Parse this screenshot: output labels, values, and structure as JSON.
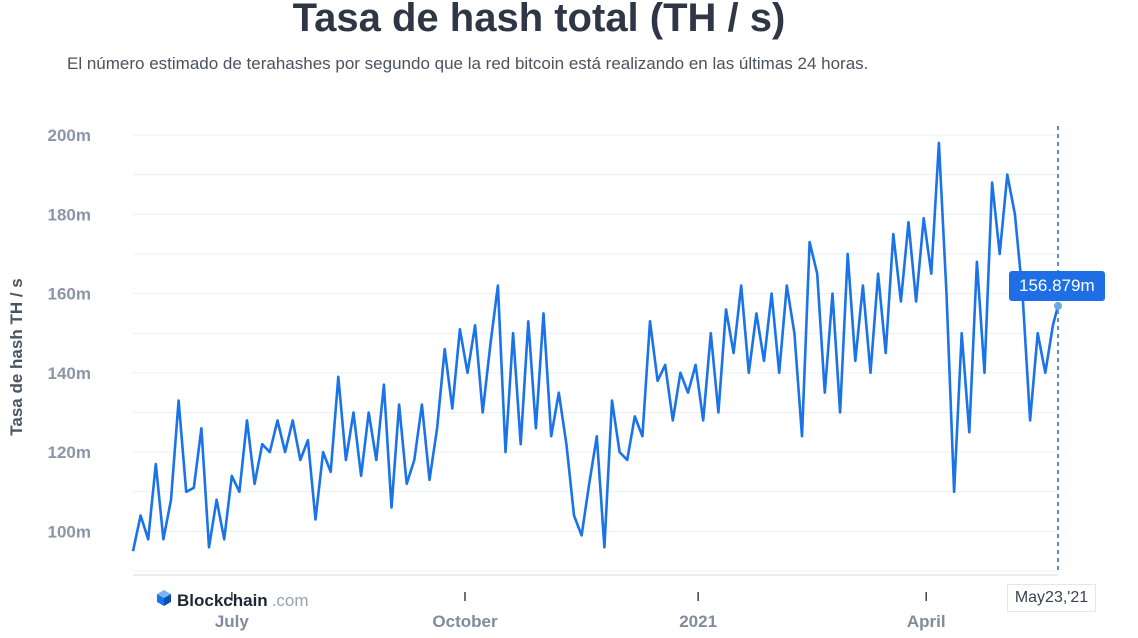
{
  "title": "Tasa de hash total (TH / s)",
  "subtitle": "El número estimado de terahashes por segundo que la red bitcoin está realizando en las últimas 24 horas.",
  "tooltip_value": "156.879m",
  "cursor_date": "May23,'21",
  "brand": {
    "name": "Blockchain",
    "tld": ".com",
    "logo": "blockchain-cube-icon"
  },
  "colors": {
    "line": "#1a73e8",
    "tooltip": "#1e6fe6",
    "grid": "#eceff3"
  },
  "chart_data": {
    "type": "line",
    "title": "Tasa de hash total (TH / s)",
    "ylabel": "Tasa de hash TH / s",
    "xlabel": "",
    "ylim": [
      89,
      200
    ],
    "yticks": [
      100,
      120,
      140,
      160,
      180,
      200
    ],
    "ytick_labels": [
      "100m",
      "120m",
      "140m",
      "160m",
      "180m",
      "200m"
    ],
    "y_unit": "million TH/s",
    "xlim": [
      "2020-05-23",
      "2021-05-23"
    ],
    "xticks": [
      "2020-07-01",
      "2020-10-01",
      "2021-01-01",
      "2021-04-01"
    ],
    "xtick_labels": [
      "July",
      "October",
      "2021",
      "April"
    ],
    "grid": true,
    "hover": {
      "x": "2021-05-23",
      "y": 156.879
    },
    "series": [
      {
        "values": [
          [
            "2020-05-23",
            95
          ],
          [
            "2020-05-26",
            104
          ],
          [
            "2020-05-29",
            98
          ],
          [
            "2020-06-01",
            117
          ],
          [
            "2020-06-04",
            98
          ],
          [
            "2020-06-07",
            108
          ],
          [
            "2020-06-10",
            133
          ],
          [
            "2020-06-13",
            110
          ],
          [
            "2020-06-16",
            111
          ],
          [
            "2020-06-19",
            126
          ],
          [
            "2020-06-22",
            96
          ],
          [
            "2020-06-25",
            108
          ],
          [
            "2020-06-28",
            98
          ],
          [
            "2020-07-01",
            114
          ],
          [
            "2020-07-04",
            110
          ],
          [
            "2020-07-07",
            128
          ],
          [
            "2020-07-10",
            112
          ],
          [
            "2020-07-13",
            122
          ],
          [
            "2020-07-16",
            120
          ],
          [
            "2020-07-19",
            128
          ],
          [
            "2020-07-22",
            120
          ],
          [
            "2020-07-25",
            128
          ],
          [
            "2020-07-28",
            118
          ],
          [
            "2020-07-31",
            123
          ],
          [
            "2020-08-03",
            103
          ],
          [
            "2020-08-06",
            120
          ],
          [
            "2020-08-09",
            115
          ],
          [
            "2020-08-12",
            139
          ],
          [
            "2020-08-15",
            118
          ],
          [
            "2020-08-18",
            130
          ],
          [
            "2020-08-21",
            114
          ],
          [
            "2020-08-24",
            130
          ],
          [
            "2020-08-27",
            118
          ],
          [
            "2020-08-30",
            137
          ],
          [
            "2020-09-02",
            106
          ],
          [
            "2020-09-05",
            132
          ],
          [
            "2020-09-08",
            112
          ],
          [
            "2020-09-11",
            118
          ],
          [
            "2020-09-14",
            132
          ],
          [
            "2020-09-17",
            113
          ],
          [
            "2020-09-20",
            126
          ],
          [
            "2020-09-23",
            146
          ],
          [
            "2020-09-26",
            131
          ],
          [
            "2020-09-29",
            151
          ],
          [
            "2020-10-02",
            140
          ],
          [
            "2020-10-05",
            152
          ],
          [
            "2020-10-08",
            130
          ],
          [
            "2020-10-11",
            147
          ],
          [
            "2020-10-14",
            162
          ],
          [
            "2020-10-17",
            120
          ],
          [
            "2020-10-20",
            150
          ],
          [
            "2020-10-23",
            122
          ],
          [
            "2020-10-26",
            153
          ],
          [
            "2020-10-29",
            126
          ],
          [
            "2020-11-01",
            155
          ],
          [
            "2020-11-04",
            124
          ],
          [
            "2020-11-07",
            135
          ],
          [
            "2020-11-10",
            122
          ],
          [
            "2020-11-13",
            104
          ],
          [
            "2020-11-16",
            99
          ],
          [
            "2020-11-19",
            112
          ],
          [
            "2020-11-22",
            124
          ],
          [
            "2020-11-25",
            96
          ],
          [
            "2020-11-28",
            133
          ],
          [
            "2020-12-01",
            120
          ],
          [
            "2020-12-04",
            118
          ],
          [
            "2020-12-07",
            129
          ],
          [
            "2020-12-10",
            124
          ],
          [
            "2020-12-13",
            153
          ],
          [
            "2020-12-16",
            138
          ],
          [
            "2020-12-19",
            142
          ],
          [
            "2020-12-22",
            128
          ],
          [
            "2020-12-25",
            140
          ],
          [
            "2020-12-28",
            135
          ],
          [
            "2020-12-31",
            142
          ],
          [
            "2021-01-03",
            128
          ],
          [
            "2021-01-06",
            150
          ],
          [
            "2021-01-09",
            130
          ],
          [
            "2021-01-12",
            156
          ],
          [
            "2021-01-15",
            145
          ],
          [
            "2021-01-18",
            162
          ],
          [
            "2021-01-21",
            140
          ],
          [
            "2021-01-24",
            155
          ],
          [
            "2021-01-27",
            143
          ],
          [
            "2021-01-30",
            160
          ],
          [
            "2021-02-02",
            140
          ],
          [
            "2021-02-05",
            162
          ],
          [
            "2021-02-08",
            150
          ],
          [
            "2021-02-11",
            124
          ],
          [
            "2021-02-14",
            173
          ],
          [
            "2021-02-17",
            165
          ],
          [
            "2021-02-20",
            135
          ],
          [
            "2021-02-23",
            160
          ],
          [
            "2021-02-26",
            130
          ],
          [
            "2021-03-01",
            170
          ],
          [
            "2021-03-04",
            143
          ],
          [
            "2021-03-07",
            162
          ],
          [
            "2021-03-10",
            140
          ],
          [
            "2021-03-13",
            165
          ],
          [
            "2021-03-16",
            145
          ],
          [
            "2021-03-19",
            175
          ],
          [
            "2021-03-22",
            158
          ],
          [
            "2021-03-25",
            178
          ],
          [
            "2021-03-28",
            158
          ],
          [
            "2021-03-31",
            179
          ],
          [
            "2021-04-03",
            165
          ],
          [
            "2021-04-06",
            198
          ],
          [
            "2021-04-09",
            160
          ],
          [
            "2021-04-12",
            110
          ],
          [
            "2021-04-15",
            150
          ],
          [
            "2021-04-18",
            125
          ],
          [
            "2021-04-21",
            168
          ],
          [
            "2021-04-24",
            140
          ],
          [
            "2021-04-27",
            188
          ],
          [
            "2021-04-30",
            170
          ],
          [
            "2021-05-03",
            190
          ],
          [
            "2021-05-06",
            180
          ],
          [
            "2021-05-09",
            160
          ],
          [
            "2021-05-12",
            128
          ],
          [
            "2021-05-15",
            150
          ],
          [
            "2021-05-18",
            140
          ],
          [
            "2021-05-21",
            152
          ],
          [
            "2021-05-23",
            156.879
          ]
        ]
      }
    ]
  }
}
